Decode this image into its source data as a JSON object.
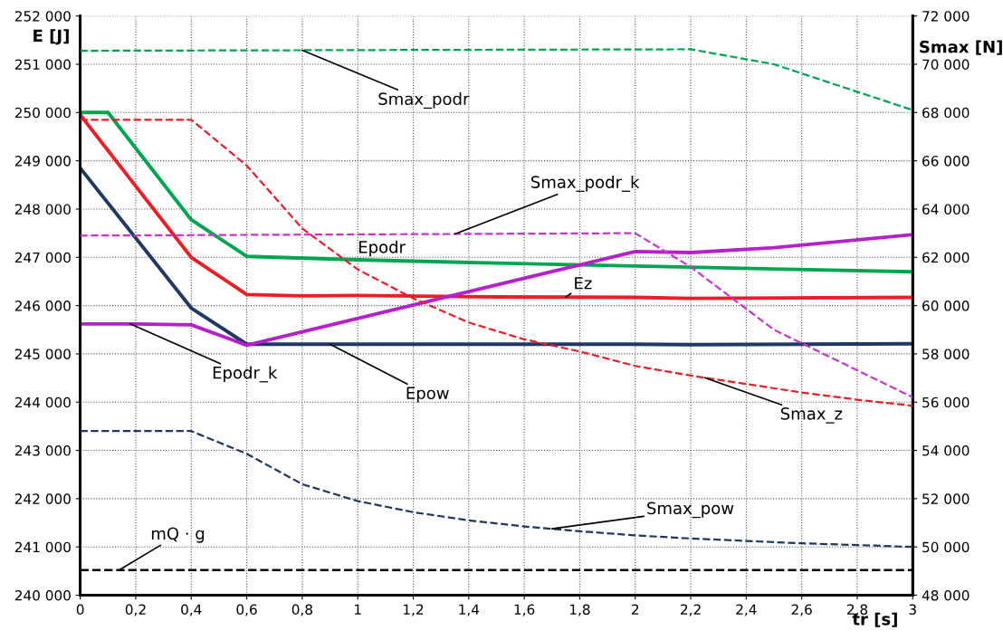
{
  "chart_data": {
    "type": "line",
    "xlabel": "tr [s]",
    "ylabel": "E [J]",
    "y2label": "Smax [N]",
    "xlim": [
      0,
      3
    ],
    "xticks": [
      0,
      {
        "value": 0.2,
        "label": "0,2"
      },
      {
        "value": 0.4,
        "label": "0,4"
      },
      {
        "value": 0.6,
        "label": "0,6"
      },
      {
        "value": 0.8,
        "label": "0,8"
      },
      1,
      {
        "value": 1.2,
        "label": "1,2"
      },
      {
        "value": 1.4,
        "label": "1,4"
      },
      {
        "value": 1.6,
        "label": "1,6"
      },
      {
        "value": 1.8,
        "label": "1,8"
      },
      2,
      {
        "value": 2.2,
        "label": "2,2"
      },
      {
        "value": 2.4,
        "label": "2,4"
      },
      {
        "value": 2.6,
        "label": "2,6"
      },
      {
        "value": 2.8,
        "label": "2,8"
      },
      3
    ],
    "ylim": [
      240000,
      252000
    ],
    "yticks": [
      {
        "value": 240000,
        "label": "240 000"
      },
      {
        "value": 241000,
        "label": "241 000"
      },
      {
        "value": 242000,
        "label": "242 000"
      },
      {
        "value": 243000,
        "label": "243 000"
      },
      {
        "value": 244000,
        "label": "244 000"
      },
      {
        "value": 245000,
        "label": "245 000"
      },
      {
        "value": 246000,
        "label": "246 000"
      },
      {
        "value": 247000,
        "label": "247 000"
      },
      {
        "value": 248000,
        "label": "248 000"
      },
      {
        "value": 249000,
        "label": "249 000"
      },
      {
        "value": 250000,
        "label": "250 000"
      },
      {
        "value": 251000,
        "label": "251 000"
      },
      {
        "value": 252000,
        "label": "252 000"
      }
    ],
    "y2lim": [
      48000,
      72000
    ],
    "y2ticks": [
      {
        "value": 48000,
        "label": "48 000"
      },
      {
        "value": 50000,
        "label": "50 000"
      },
      {
        "value": 52000,
        "label": "52 000"
      },
      {
        "value": 54000,
        "label": "54 000"
      },
      {
        "value": 56000,
        "label": "56 000"
      },
      {
        "value": 58000,
        "label": "58 000"
      },
      {
        "value": 60000,
        "label": "60 000"
      },
      {
        "value": 62000,
        "label": "62 000"
      },
      {
        "value": 64000,
        "label": "64 000"
      },
      {
        "value": 66000,
        "label": "66 000"
      },
      {
        "value": 68000,
        "label": "68 000"
      },
      {
        "value": 70000,
        "label": "70 000"
      },
      {
        "value": 72000,
        "label": "72 000"
      }
    ],
    "grid": true,
    "legend": false,
    "marker": "none",
    "series": [
      {
        "name": "Epodr",
        "color": "#00a64f",
        "line_style": "solid",
        "x": [
          0,
          0.1,
          0.4,
          0.6,
          1,
          1.5,
          2,
          2.5,
          3
        ],
        "values": [
          250000,
          250000,
          247780,
          247020,
          246950,
          246880,
          246820,
          246760,
          246700
        ]
      },
      {
        "name": "Ez",
        "color": "#ee1c24",
        "line_style": "solid",
        "x": [
          0,
          0.4,
          0.6,
          0.8,
          1,
          1.5,
          2,
          2.2,
          3
        ],
        "values": [
          249950,
          247000,
          246230,
          246200,
          246210,
          246180,
          246170,
          246150,
          246170
        ]
      },
      {
        "name": "Epow",
        "color": "#1f3864",
        "line_style": "solid",
        "x": [
          0,
          0.4,
          0.6,
          1,
          2,
          2.2,
          3
        ],
        "values": [
          248850,
          245950,
          245200,
          245200,
          245200,
          245190,
          245210
        ]
      },
      {
        "name": "Epodr_k",
        "color": "#b61fcc",
        "line_style": "solid",
        "x": [
          0,
          0.2,
          0.4,
          0.6,
          2,
          2.2,
          2.5,
          3
        ],
        "values": [
          245620,
          245620,
          245600,
          245180,
          247120,
          247100,
          247200,
          247470
        ]
      },
      {
        "name": "Smax_podr",
        "color": "#00a64f",
        "line_style": "dashed",
        "axis": "y2",
        "x": [
          0,
          2.2,
          2.5,
          3
        ],
        "values": [
          70560,
          70620,
          70000,
          68100
        ]
      },
      {
        "name": "Smax_z",
        "color": "#ee1c24",
        "line_style": "dashed",
        "axis": "y2",
        "x": [
          0,
          0.4,
          0.6,
          0.8,
          1,
          1.2,
          1.4,
          1.6,
          1.8,
          2,
          2.2,
          2.4,
          2.6,
          2.8,
          3
        ],
        "values": [
          67700,
          67700,
          65800,
          63200,
          61500,
          60300,
          59300,
          58600,
          58100,
          57500,
          57100,
          56750,
          56400,
          56100,
          55850
        ]
      },
      {
        "name": "Smax_podr_k",
        "color": "#cc33cc",
        "line_style": "dashed",
        "axis": "y2",
        "x": [
          0,
          2,
          2.2,
          2.5,
          3
        ],
        "values": [
          62900,
          63000,
          61600,
          59000,
          56200
        ]
      },
      {
        "name": "Smax_pow",
        "color": "#1f3864",
        "line_style": "dashed",
        "axis": "y2",
        "x": [
          0,
          0.4,
          0.6,
          0.8,
          1,
          1.2,
          1.4,
          1.6,
          1.8,
          2,
          2.2,
          2.4,
          2.6,
          2.8,
          3
        ],
        "values": [
          54800,
          54800,
          53860,
          52600,
          51900,
          51440,
          51100,
          50850,
          50650,
          50480,
          50350,
          50250,
          50150,
          50080,
          50000
        ]
      }
    ],
    "ref_lines": [
      {
        "axis": "y",
        "value": 240520,
        "label": "mQ · g",
        "color": "#000000",
        "line_style": "dashed"
      }
    ]
  }
}
